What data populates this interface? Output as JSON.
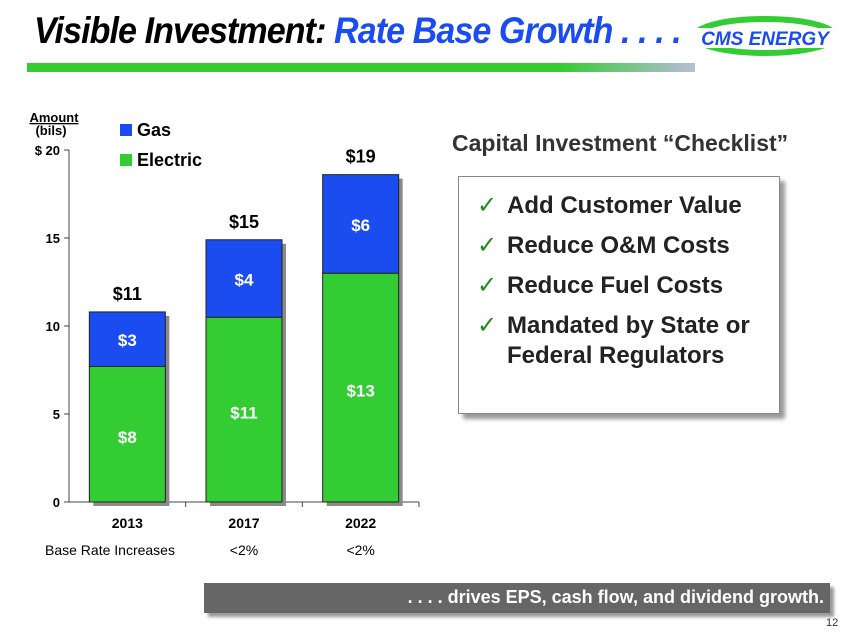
{
  "title": {
    "part1": "Visible Investment: ",
    "part2": "Rate Base Growth . . . ."
  },
  "logo": {
    "text": "CMS ENERGY"
  },
  "chart_data": {
    "type": "bar",
    "stacked": true,
    "categories": [
      "2013",
      "2017",
      "2022"
    ],
    "series": [
      {
        "name": "Electric",
        "values": [
          7.7,
          10.5,
          13
        ],
        "labels": [
          "$8",
          "$11",
          "$13"
        ],
        "color": "#33cc33"
      },
      {
        "name": "Gas",
        "values": [
          3.1,
          4.4,
          5.6
        ],
        "labels": [
          "$3",
          "$4",
          "$6"
        ],
        "color": "#1a4cf0"
      }
    ],
    "totals": [
      "$11",
      "$15",
      "$19"
    ],
    "ylabel": "Amount (bils)",
    "ytick_labels": [
      "0",
      "5",
      "10",
      "15",
      "$ 20"
    ],
    "ylim": [
      0,
      20
    ],
    "legend_position": "top-left",
    "footer_row": {
      "label": "Base Rate Increases",
      "values": [
        "",
        "<2%",
        "<2%"
      ]
    }
  },
  "checklist": {
    "title": "Capital Investment “Checklist”",
    "items": [
      "Add Customer Value",
      "Reduce O&M Costs",
      "Reduce Fuel Costs",
      "Mandated by State or Federal Regulators"
    ]
  },
  "banner": ". . . . drives EPS, cash flow, and dividend growth.",
  "page_number": "12",
  "colors": {
    "green": "#33cc33",
    "blue": "#1a4cf0",
    "check": "#1e8a1e"
  }
}
